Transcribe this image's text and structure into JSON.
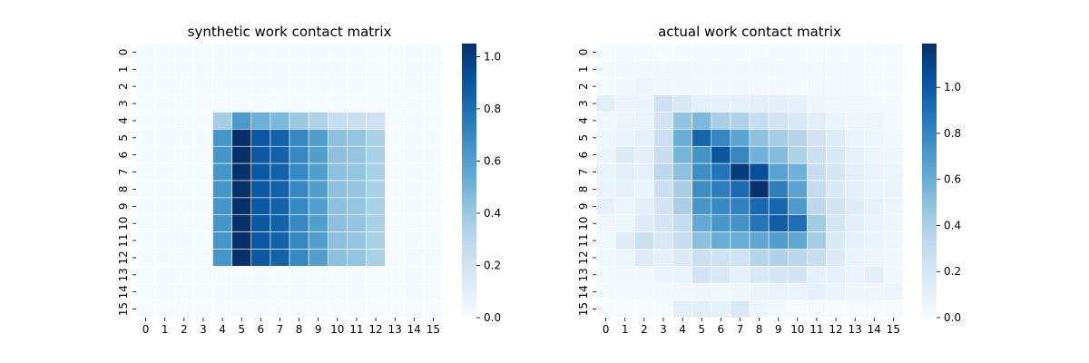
{
  "chart_data": [
    {
      "type": "heatmap",
      "title": "synthetic work contact matrix",
      "x_categories": [
        "0",
        "1",
        "2",
        "3",
        "4",
        "5",
        "6",
        "7",
        "8",
        "9",
        "10",
        "11",
        "12",
        "13",
        "14",
        "15"
      ],
      "y_categories": [
        "0",
        "1",
        "2",
        "3",
        "4",
        "5",
        "6",
        "7",
        "8",
        "9",
        "10",
        "11",
        "12",
        "13",
        "14",
        "15"
      ],
      "colormap": "Blues",
      "vmin": 0,
      "vmax": 1.05,
      "colorbar_ticks": [
        "0.0",
        "0.2",
        "0.4",
        "0.6",
        "0.8",
        "1.0"
      ],
      "colorbar_values": [
        0,
        0.2,
        0.4,
        0.6,
        0.8,
        1.0
      ],
      "values": [
        [
          0.01,
          0.01,
          0.01,
          0.01,
          0.01,
          0.01,
          0.01,
          0.01,
          0.01,
          0.01,
          0.01,
          0.01,
          0.01,
          0.01,
          0.01,
          0.01
        ],
        [
          0.01,
          0.01,
          0.01,
          0.01,
          0.01,
          0.01,
          0.01,
          0.01,
          0.01,
          0.01,
          0.01,
          0.01,
          0.01,
          0.01,
          0.01,
          0.01
        ],
        [
          0.01,
          0.01,
          0.01,
          0.01,
          0.01,
          0.01,
          0.01,
          0.01,
          0.01,
          0.01,
          0.01,
          0.01,
          0.01,
          0.01,
          0.01,
          0.01
        ],
        [
          0.01,
          0.01,
          0.01,
          0.01,
          0.01,
          0.01,
          0.01,
          0.01,
          0.01,
          0.01,
          0.01,
          0.01,
          0.01,
          0.01,
          0.01,
          0.01
        ],
        [
          0.01,
          0.01,
          0.01,
          0.01,
          0.36,
          0.62,
          0.52,
          0.48,
          0.4,
          0.34,
          0.25,
          0.23,
          0.21,
          0.01,
          0.01,
          0.01
        ],
        [
          0.01,
          0.01,
          0.01,
          0.01,
          0.64,
          1.05,
          0.89,
          0.85,
          0.7,
          0.6,
          0.44,
          0.42,
          0.35,
          0.01,
          0.01,
          0.01
        ],
        [
          0.01,
          0.01,
          0.01,
          0.01,
          0.64,
          1.05,
          0.89,
          0.85,
          0.7,
          0.6,
          0.44,
          0.42,
          0.35,
          0.01,
          0.01,
          0.01
        ],
        [
          0.01,
          0.01,
          0.01,
          0.01,
          0.64,
          1.05,
          0.89,
          0.85,
          0.7,
          0.6,
          0.44,
          0.42,
          0.35,
          0.01,
          0.01,
          0.01
        ],
        [
          0.01,
          0.01,
          0.01,
          0.01,
          0.64,
          1.05,
          0.89,
          0.85,
          0.7,
          0.6,
          0.44,
          0.42,
          0.35,
          0.01,
          0.01,
          0.01
        ],
        [
          0.01,
          0.01,
          0.01,
          0.01,
          0.64,
          1.05,
          0.89,
          0.85,
          0.7,
          0.6,
          0.44,
          0.42,
          0.35,
          0.01,
          0.01,
          0.01
        ],
        [
          0.01,
          0.01,
          0.01,
          0.01,
          0.64,
          1.05,
          0.89,
          0.85,
          0.7,
          0.6,
          0.44,
          0.42,
          0.35,
          0.01,
          0.01,
          0.01
        ],
        [
          0.01,
          0.01,
          0.01,
          0.01,
          0.64,
          1.05,
          0.89,
          0.85,
          0.7,
          0.6,
          0.44,
          0.42,
          0.35,
          0.01,
          0.01,
          0.01
        ],
        [
          0.01,
          0.01,
          0.01,
          0.01,
          0.64,
          1.05,
          0.89,
          0.85,
          0.7,
          0.6,
          0.44,
          0.42,
          0.35,
          0.01,
          0.01,
          0.01
        ],
        [
          0.01,
          0.01,
          0.01,
          0.01,
          0.01,
          0.01,
          0.01,
          0.01,
          0.01,
          0.01,
          0.01,
          0.01,
          0.01,
          0.01,
          0.01,
          0.01
        ],
        [
          0.01,
          0.01,
          0.01,
          0.01,
          0.01,
          0.01,
          0.01,
          0.01,
          0.01,
          0.01,
          0.01,
          0.01,
          0.01,
          0.01,
          0.01,
          0.01
        ],
        [
          0.01,
          0.01,
          0.01,
          0.01,
          0.01,
          0.01,
          0.01,
          0.01,
          0.01,
          0.01,
          0.01,
          0.01,
          0.01,
          0.01,
          0.01,
          0.01
        ]
      ]
    },
    {
      "type": "heatmap",
      "title": "actual work contact matrix",
      "x_categories": [
        "0",
        "1",
        "2",
        "3",
        "4",
        "5",
        "6",
        "7",
        "8",
        "9",
        "10",
        "11",
        "12",
        "13",
        "14",
        "15"
      ],
      "y_categories": [
        "0",
        "1",
        "2",
        "3",
        "4",
        "5",
        "6",
        "7",
        "8",
        "9",
        "10",
        "11",
        "12",
        "13",
        "14",
        "15"
      ],
      "colormap": "Blues",
      "vmin": 0,
      "vmax": 1.19,
      "colorbar_ticks": [
        "0.0",
        "0.2",
        "0.4",
        "0.6",
        "0.8",
        "1.0"
      ],
      "colorbar_values": [
        0,
        0.2,
        0.4,
        0.6,
        0.8,
        1.0
      ],
      "values": [
        [
          0.01,
          0.01,
          0.01,
          0.01,
          0.01,
          0.01,
          0.01,
          0.01,
          0.01,
          0.01,
          0.01,
          0.01,
          0.01,
          0.01,
          0.01,
          0.01
        ],
        [
          0.02,
          0.03,
          0.03,
          0.04,
          0.04,
          0.03,
          0.03,
          0.03,
          0.03,
          0.03,
          0.02,
          0.02,
          0.02,
          0.02,
          0.01,
          0.01
        ],
        [
          0.02,
          0.03,
          0.06,
          0.05,
          0.04,
          0.03,
          0.03,
          0.03,
          0.03,
          0.03,
          0.02,
          0.02,
          0.02,
          0.02,
          0.01,
          0.01
        ],
        [
          0.12,
          0.08,
          0.08,
          0.25,
          0.18,
          0.1,
          0.1,
          0.1,
          0.12,
          0.12,
          0.1,
          0.05,
          0.04,
          0.04,
          0.02,
          0.02
        ],
        [
          0.04,
          0.06,
          0.08,
          0.22,
          0.48,
          0.54,
          0.4,
          0.38,
          0.28,
          0.22,
          0.18,
          0.12,
          0.08,
          0.05,
          0.06,
          0.02
        ],
        [
          0.05,
          0.08,
          0.1,
          0.26,
          0.6,
          0.95,
          0.8,
          0.65,
          0.5,
          0.42,
          0.36,
          0.22,
          0.15,
          0.08,
          0.06,
          0.04
        ],
        [
          0.06,
          0.16,
          0.12,
          0.28,
          0.56,
          0.74,
          1.02,
          0.8,
          0.58,
          0.52,
          0.38,
          0.26,
          0.18,
          0.1,
          0.06,
          0.05
        ],
        [
          0.08,
          0.12,
          0.1,
          0.32,
          0.5,
          0.76,
          0.88,
          1.14,
          1.05,
          0.66,
          0.58,
          0.28,
          0.2,
          0.12,
          0.08,
          0.06
        ],
        [
          0.08,
          0.1,
          0.08,
          0.26,
          0.4,
          0.76,
          0.84,
          0.92,
          1.19,
          0.84,
          0.66,
          0.3,
          0.18,
          0.12,
          0.08,
          0.07
        ],
        [
          0.1,
          0.06,
          0.12,
          0.22,
          0.4,
          0.72,
          0.78,
          0.82,
          0.94,
          0.95,
          0.7,
          0.32,
          0.22,
          0.14,
          0.1,
          0.06
        ],
        [
          0.05,
          0.06,
          0.14,
          0.2,
          0.3,
          0.62,
          0.72,
          0.74,
          0.88,
          0.98,
          0.9,
          0.44,
          0.2,
          0.12,
          0.08,
          0.06
        ],
        [
          0.04,
          0.14,
          0.26,
          0.18,
          0.28,
          0.5,
          0.6,
          0.6,
          0.64,
          0.68,
          0.64,
          0.42,
          0.18,
          0.1,
          0.08,
          0.05
        ],
        [
          0.04,
          0.06,
          0.14,
          0.1,
          0.16,
          0.26,
          0.24,
          0.24,
          0.36,
          0.38,
          0.34,
          0.28,
          0.16,
          0.08,
          0.06,
          0.04
        ],
        [
          0.02,
          0.04,
          0.04,
          0.08,
          0.08,
          0.22,
          0.18,
          0.1,
          0.18,
          0.2,
          0.22,
          0.1,
          0.1,
          0.08,
          0.12,
          0.03
        ],
        [
          0.02,
          0.02,
          0.02,
          0.03,
          0.04,
          0.05,
          0.04,
          0.05,
          0.07,
          0.08,
          0.08,
          0.1,
          0.07,
          0.05,
          0.05,
          0.06
        ],
        [
          0.01,
          0.01,
          0.01,
          0.01,
          0.12,
          0.12,
          0.1,
          0.18,
          0.06,
          0.04,
          0.02,
          0.02,
          0.01,
          0.01,
          0.01,
          0.01
        ]
      ]
    }
  ]
}
